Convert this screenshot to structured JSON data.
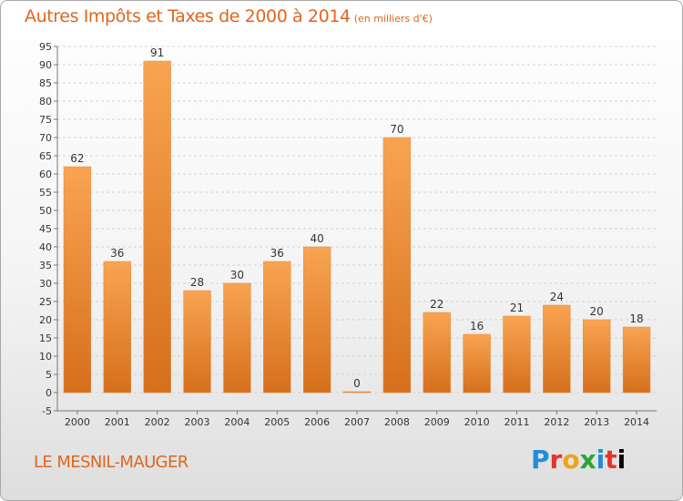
{
  "chart_data": {
    "type": "bar",
    "title": "Autres Impôts et Taxes de 2000 à 2014",
    "subtitle": "(en milliers d'€)",
    "categories": [
      "2000",
      "2001",
      "2002",
      "2003",
      "2004",
      "2005",
      "2006",
      "2007",
      "2008",
      "2009",
      "2010",
      "2011",
      "2012",
      "2013",
      "2014"
    ],
    "values": [
      62,
      36,
      91,
      28,
      30,
      36,
      40,
      0,
      70,
      22,
      16,
      21,
      24,
      20,
      18
    ],
    "ylim": [
      -5,
      95
    ],
    "ytick_step": 5,
    "grid": true,
    "bar_color": "#f5973f",
    "bar_color_dark": "#d9731e"
  },
  "footer": {
    "place": "LE MESNIL-MAUGER",
    "brand": [
      "P",
      "r",
      "o",
      "x",
      "i",
      "t",
      "i"
    ]
  },
  "colors": {
    "accent": "#e0661f"
  }
}
